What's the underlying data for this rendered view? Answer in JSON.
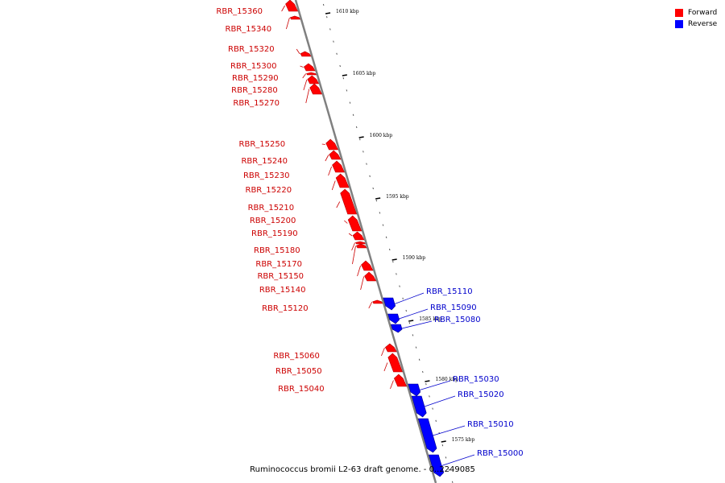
{
  "legend": {
    "forward": {
      "label": "Forward",
      "color": "#ff0000"
    },
    "reverse": {
      "label": "Reverse",
      "color": "#0000ff"
    }
  },
  "caption": "Ruminococcus bromii L2-63 draft genome. - 0..2249085",
  "colors": {
    "forward_fill": "#ff0000",
    "forward_dark": "#b30000",
    "reverse_fill": "#0000ff",
    "reverse_dark": "#00008b",
    "axis": "#808080",
    "forward_text": "#cc0000",
    "reverse_text": "#0000cc"
  },
  "scale": {
    "ticks": [
      {
        "label": "1610 kbp"
      },
      {
        "label": "1605 kbp"
      },
      {
        "label": "1600 kbp"
      },
      {
        "label": "1595 kbp"
      },
      {
        "label": "1590 kbp"
      },
      {
        "label": "1585 kbp"
      },
      {
        "label": "1580 kbp"
      },
      {
        "label": "1575 kbp"
      }
    ]
  },
  "forward_genes": [
    {
      "name": "RBR_15360"
    },
    {
      "name": "RBR_15340"
    },
    {
      "name": "RBR_15320"
    },
    {
      "name": "RBR_15300"
    },
    {
      "name": "RBR_15290"
    },
    {
      "name": "RBR_15280"
    },
    {
      "name": "RBR_15270"
    },
    {
      "name": "RBR_15250"
    },
    {
      "name": "RBR_15240"
    },
    {
      "name": "RBR_15230"
    },
    {
      "name": "RBR_15220"
    },
    {
      "name": "RBR_15210"
    },
    {
      "name": "RBR_15200"
    },
    {
      "name": "RBR_15190"
    },
    {
      "name": "RBR_15180"
    },
    {
      "name": "RBR_15170"
    },
    {
      "name": "RBR_15150"
    },
    {
      "name": "RBR_15140"
    },
    {
      "name": "RBR_15120"
    },
    {
      "name": "RBR_15060"
    },
    {
      "name": "RBR_15050"
    },
    {
      "name": "RBR_15040"
    }
  ],
  "reverse_genes": [
    {
      "name": "RBR_15110"
    },
    {
      "name": "RBR_15090"
    },
    {
      "name": "RBR_15080"
    },
    {
      "name": "RBR_15030"
    },
    {
      "name": "RBR_15020"
    },
    {
      "name": "RBR_15010"
    },
    {
      "name": "RBR_15000"
    }
  ]
}
